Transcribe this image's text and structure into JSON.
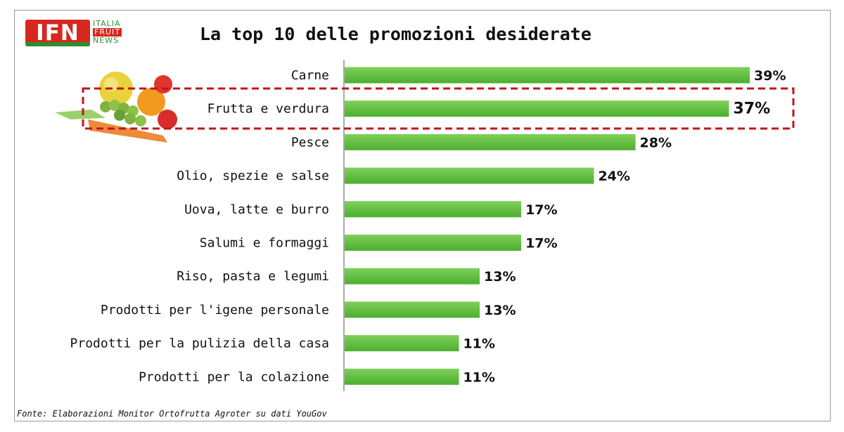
{
  "header": {
    "logo_text": "IFN",
    "logo_words": [
      "ITALIA",
      "FRUIT",
      "NEWS"
    ],
    "title": "La top 10 delle promozioni desiderate"
  },
  "footer": {
    "source": "Fonte: Elaborazioni Monitor Ortofrutta Agroter su dati YouGov"
  },
  "colors": {
    "bar": "#4caf2f",
    "bar_light": "#7fd05a",
    "highlight_box": "#c0141a",
    "axis": "#555555"
  },
  "icons": {
    "logo": "ifn-logo-icon",
    "fruit": "fruit-vegetables-icon"
  },
  "chart_data": {
    "type": "bar",
    "orientation": "horizontal",
    "title": "La top 10 delle promozioni desiderate",
    "categories": [
      "Carne",
      "Frutta e verdura",
      "Pesce",
      "Olio, spezie e salse",
      "Uova, latte e burro",
      "Salumi e formaggi",
      "Riso, pasta e legumi",
      "Prodotti per l'igene personale",
      "Prodotti per la pulizia della casa",
      "Prodotti per la colazione"
    ],
    "values": [
      39,
      37,
      28,
      24,
      17,
      17,
      13,
      13,
      11,
      11
    ],
    "value_labels": [
      "39%",
      "37%",
      "28%",
      "24%",
      "17%",
      "17%",
      "13%",
      "13%",
      "11%",
      "11%"
    ],
    "unit": "%",
    "highlighted_category": "Frutta e verdura",
    "xlim": [
      0,
      39
    ],
    "grid": false,
    "legend": "none"
  }
}
